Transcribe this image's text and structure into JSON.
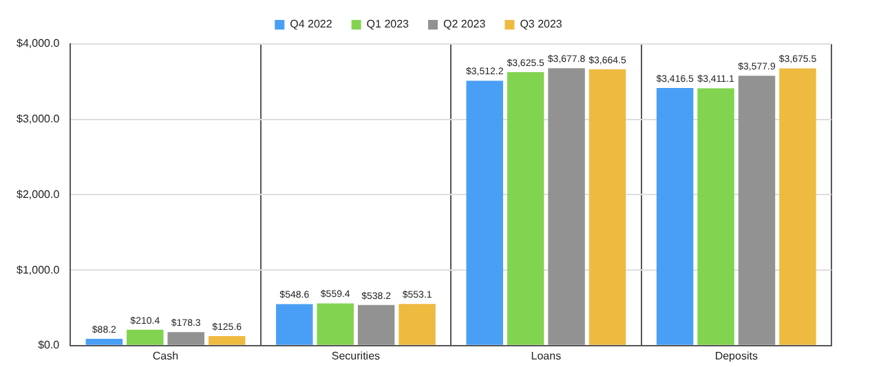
{
  "chart_data": {
    "type": "bar",
    "categories": [
      "Cash",
      "Securities",
      "Loans",
      "Deposits"
    ],
    "series": [
      {
        "name": "Q4 2022",
        "color": "#499ff5",
        "values": [
          88.2,
          548.6,
          3512.2,
          3416.5
        ],
        "value_labels": [
          "$88.2",
          "$548.6",
          "$3,512.2",
          "$3,416.5"
        ]
      },
      {
        "name": "Q1 2023",
        "color": "#82d450",
        "values": [
          210.4,
          559.4,
          3625.5,
          3411.1
        ],
        "value_labels": [
          "$210.4",
          "$559.4",
          "$3,625.5",
          "$3,411.1"
        ]
      },
      {
        "name": "Q2 2023",
        "color": "#929292",
        "values": [
          178.3,
          538.2,
          3677.8,
          3577.9
        ],
        "value_labels": [
          "$178.3",
          "$538.2",
          "$3,677.8",
          "$3,577.9"
        ]
      },
      {
        "name": "Q3 2023",
        "color": "#efba40",
        "values": [
          125.6,
          553.1,
          3664.5,
          3675.5
        ],
        "value_labels": [
          "$125.6",
          "$553.1",
          "$3,664.5",
          "$3,675.5"
        ]
      }
    ],
    "ylim": [
      0,
      4000
    ],
    "yticks": [
      {
        "value": 0,
        "label": "$0.0"
      },
      {
        "value": 1000,
        "label": "$1,000.0"
      },
      {
        "value": 2000,
        "label": "$2,000.0"
      },
      {
        "value": 3000,
        "label": "$3,000.0"
      },
      {
        "value": 4000,
        "label": "$4,000.0"
      }
    ],
    "grid": true,
    "legend": "top"
  }
}
